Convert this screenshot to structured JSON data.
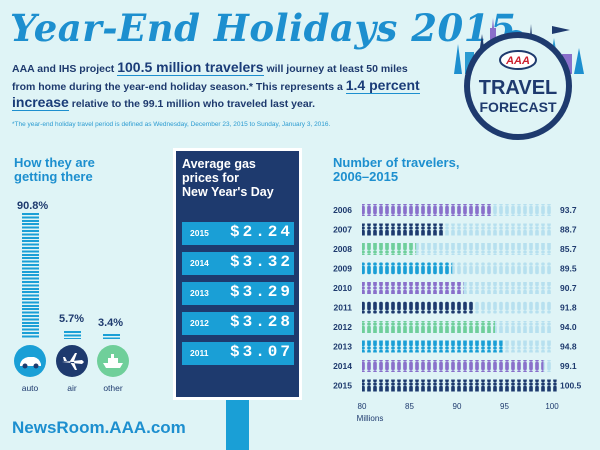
{
  "title": "Year-End Holidays 2015",
  "intro": {
    "part1": "AAA and IHS project ",
    "highlight1": "100.5 million travelers",
    "part2": " will journey at least 50 miles from home during the year-end holiday season.* This represents a ",
    "highlight2": "1.4 percent increase",
    "part3": " relative to the 99.1 million who traveled last year."
  },
  "footnote": "*The year-end holiday travel period is defined as Wednesday, December 23, 2015 to Sunday, January 3, 2016.",
  "logo": {
    "brand": "AAA",
    "line1": "TRAVEL",
    "line2": "FORECAST"
  },
  "modes": {
    "title_line1": "How they are",
    "title_line2": "getting there",
    "items": [
      {
        "label": "auto",
        "pct_label": "90.8%",
        "value": 90.8,
        "icon": "car-icon"
      },
      {
        "label": "air",
        "pct_label": "5.7%",
        "value": 5.7,
        "icon": "plane-icon"
      },
      {
        "label": "other",
        "pct_label": "3.4%",
        "value": 3.4,
        "icon": "ship-icon"
      }
    ]
  },
  "gas": {
    "title_line1": "Average gas",
    "title_line2": "prices for",
    "title_line3": "New Year's Day",
    "rows": [
      {
        "year": "2015",
        "price": "$2.24"
      },
      {
        "year": "2014",
        "price": "$3.32"
      },
      {
        "year": "2013",
        "price": "$3.29"
      },
      {
        "year": "2012",
        "price": "$3.28"
      },
      {
        "year": "2011",
        "price": "$3.07"
      }
    ]
  },
  "chart_data": {
    "type": "bar",
    "title": "Number of travelers,\n2006–2015",
    "xlabel": "Millions",
    "xlim": [
      80,
      100
    ],
    "xticks": [
      80,
      85,
      90,
      95,
      100
    ],
    "categories": [
      "2006",
      "2007",
      "2008",
      "2009",
      "2010",
      "2011",
      "2012",
      "2013",
      "2014",
      "2015"
    ],
    "values": [
      93.7,
      88.7,
      85.7,
      89.5,
      90.7,
      91.8,
      94.0,
      94.8,
      99.1,
      100.5
    ],
    "value_labels": [
      "93.7",
      "88.7",
      "85.7",
      "89.5",
      "90.7",
      "91.8",
      "94.0",
      "94.8",
      "99.1",
      "100.5"
    ],
    "colors": [
      "#8a6fcb",
      "#1e3a6e",
      "#6fcf9a",
      "#1a9fd6",
      "#8a6fcb",
      "#1e3a6e",
      "#6fcf9a",
      "#1a9fd6",
      "#8a6fcb",
      "#1e3a6e"
    ]
  },
  "url": "NewsRoom.AAA.com",
  "colors": {
    "accent": "#1d8fcf",
    "navy": "#1e3a6e",
    "background": "#dff4f6"
  }
}
